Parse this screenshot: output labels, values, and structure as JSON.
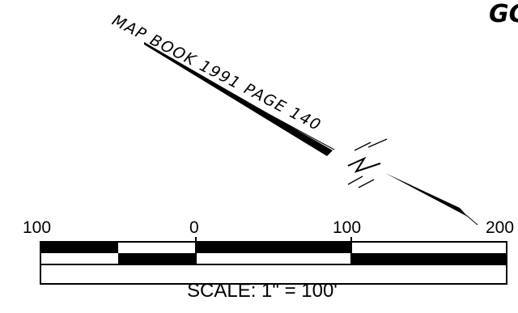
{
  "map_label": "MAP BOOK 1991 PAGE 140",
  "corner_text": "GC",
  "scale_bar": {
    "ticks": [
      "100",
      "0",
      "100",
      "200"
    ],
    "caption": "SCALE:  1\"  =  100'"
  },
  "colors": {
    "ink": "#000000",
    "paper": "#ffffff"
  }
}
